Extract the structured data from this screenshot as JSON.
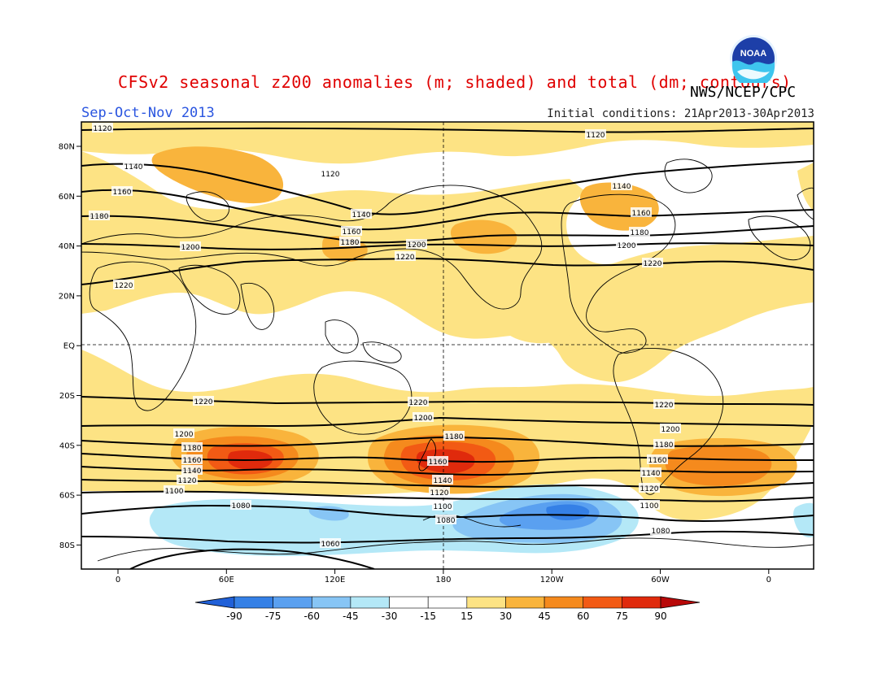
{
  "title": "CFSv2 seasonal z200 anomalies (m; shaded) and total (dm; contours)",
  "agency": "NWS/NCEP/CPC",
  "season": "Sep-Oct-Nov 2013",
  "initial_conditions": "Initial conditions: 21Apr2013-30Apr2013",
  "logo_text": "NOAA",
  "lat_labels": [
    "80N",
    "60N",
    "40N",
    "20N",
    "EQ",
    "20S",
    "40S",
    "60S",
    "80S"
  ],
  "lon_labels": [
    "0",
    "60E",
    "120E",
    "180",
    "120W",
    "60W",
    "0"
  ],
  "colorbar": {
    "ticks": [
      "-90",
      "-75",
      "-60",
      "-45",
      "-30",
      "-15",
      "15",
      "30",
      "45",
      "60",
      "75",
      "90"
    ],
    "colors": [
      "#1f5fd8",
      "#3580e6",
      "#5aa0f0",
      "#87c5f5",
      "#b4e8f7",
      "#ffffff",
      "#fde384",
      "#f9b43c",
      "#f58a1d",
      "#f25a14",
      "#e02a0c",
      "#b80808"
    ]
  },
  "contour_labels": {
    "north": [
      "1120",
      "1140",
      "1160",
      "1180",
      "1200",
      "1220"
    ],
    "south": [
      "1220",
      "1200",
      "1180",
      "1160",
      "1140",
      "1120",
      "1100",
      "1080",
      "1060"
    ]
  },
  "anomaly_colors": {
    "pos15": "#fde384",
    "pos30": "#f9b43c",
    "pos45": "#f58a1d",
    "pos60": "#f25a14",
    "pos75": "#e02a0c",
    "neg15": "#b4e8f7",
    "neg30": "#87c5f5",
    "neg45": "#5aa0f0",
    "neg60": "#3580e6"
  }
}
